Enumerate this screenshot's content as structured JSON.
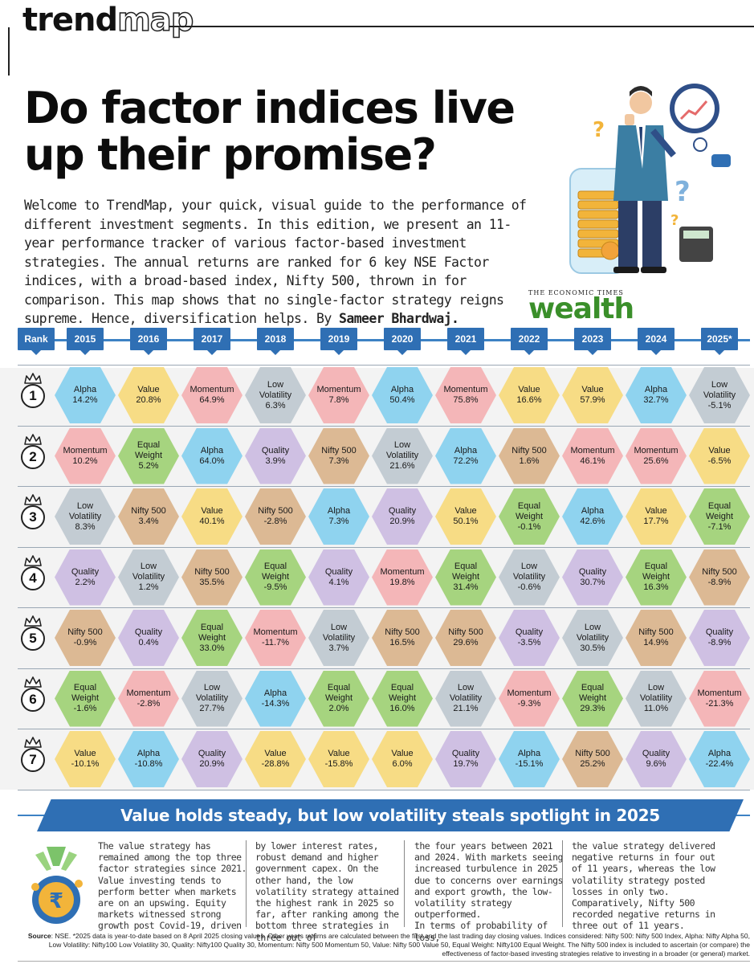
{
  "brand": {
    "part1": "trend",
    "part2": "map"
  },
  "headline": {
    "line1": "Do factor indices live",
    "line2": "up their promise?"
  },
  "intro": {
    "text": "Welcome to TrendMap, your quick, visual guide to the performance of different investment segments. In this edition, we present an 11-year performance tracker of various factor-based investment strategies. The annual returns are ranked for 6 key NSE Factor indices, with a broad-based index, Nifty 500, thrown in for comparison. This map shows that no single-factor strategy reigns supreme. Hence, diversification helps. By ",
    "author": "Sameer Bhardwaj."
  },
  "logo": {
    "small": "THE ECONOMIC TIMES",
    "big": "wealth"
  },
  "colors": {
    "header_blue": "#2f6fb4",
    "Alpha": "#8fd3ef",
    "Value": "#f7dc85",
    "Momentum": "#f4b6b8",
    "Low Volatility": "#c3ccd3",
    "Quality": "#cfc0e3",
    "Nifty 500": "#dcb994",
    "Equal Weight": "#a6d47f"
  },
  "table": {
    "rank_label": "Rank",
    "years": [
      "2015",
      "2016",
      "2017",
      "2018",
      "2019",
      "2020",
      "2021",
      "2022",
      "2023",
      "2024",
      "2025*"
    ],
    "ranks": [
      "1",
      "2",
      "3",
      "4",
      "5",
      "6",
      "7"
    ],
    "rows": [
      [
        [
          "Alpha",
          "14.2%"
        ],
        [
          "Value",
          "20.8%"
        ],
        [
          "Momentum",
          "64.9%"
        ],
        [
          "Low Volatility",
          "6.3%"
        ],
        [
          "Momentum",
          "7.8%"
        ],
        [
          "Alpha",
          "50.4%"
        ],
        [
          "Momentum",
          "75.8%"
        ],
        [
          "Value",
          "16.6%"
        ],
        [
          "Value",
          "57.9%"
        ],
        [
          "Alpha",
          "32.7%"
        ],
        [
          "Low Volatility",
          "-5.1%"
        ]
      ],
      [
        [
          "Momentum",
          "10.2%"
        ],
        [
          "Equal Weight",
          "5.2%"
        ],
        [
          "Alpha",
          "64.0%"
        ],
        [
          "Quality",
          "3.9%"
        ],
        [
          "Nifty 500",
          "7.3%"
        ],
        [
          "Low Volatility",
          "21.6%"
        ],
        [
          "Alpha",
          "72.2%"
        ],
        [
          "Nifty 500",
          "1.6%"
        ],
        [
          "Momentum",
          "46.1%"
        ],
        [
          "Momentum",
          "25.6%"
        ],
        [
          "Value",
          "-6.5%"
        ]
      ],
      [
        [
          "Low Volatility",
          "8.3%"
        ],
        [
          "Nifty 500",
          "3.4%"
        ],
        [
          "Value",
          "40.1%"
        ],
        [
          "Nifty 500",
          "-2.8%"
        ],
        [
          "Alpha",
          "7.3%"
        ],
        [
          "Quality",
          "20.9%"
        ],
        [
          "Value",
          "50.1%"
        ],
        [
          "Equal Weight",
          "-0.1%"
        ],
        [
          "Alpha",
          "42.6%"
        ],
        [
          "Value",
          "17.7%"
        ],
        [
          "Equal Weight",
          "-7.1%"
        ]
      ],
      [
        [
          "Quality",
          "2.2%"
        ],
        [
          "Low Volatility",
          "1.2%"
        ],
        [
          "Nifty 500",
          "35.5%"
        ],
        [
          "Equal Weight",
          "-9.5%"
        ],
        [
          "Quality",
          "4.1%"
        ],
        [
          "Momentum",
          "19.8%"
        ],
        [
          "Equal Weight",
          "31.4%"
        ],
        [
          "Low Volatility",
          "-0.6%"
        ],
        [
          "Quality",
          "30.7%"
        ],
        [
          "Equal Weight",
          "16.3%"
        ],
        [
          "Nifty 500",
          "-8.9%"
        ]
      ],
      [
        [
          "Nifty 500",
          "-0.9%"
        ],
        [
          "Quality",
          "0.4%"
        ],
        [
          "Equal Weight",
          "33.0%"
        ],
        [
          "Momentum",
          "-11.7%"
        ],
        [
          "Low Volatility",
          "3.7%"
        ],
        [
          "Nifty 500",
          "16.5%"
        ],
        [
          "Nifty 500",
          "29.6%"
        ],
        [
          "Quality",
          "-3.5%"
        ],
        [
          "Low Volatility",
          "30.5%"
        ],
        [
          "Nifty 500",
          "14.9%"
        ],
        [
          "Quality",
          "-8.9%"
        ]
      ],
      [
        [
          "Equal Weight",
          "-1.6%"
        ],
        [
          "Momentum",
          "-2.8%"
        ],
        [
          "Low Volatility",
          "27.7%"
        ],
        [
          "Alpha",
          "-14.3%"
        ],
        [
          "Equal Weight",
          "2.0%"
        ],
        [
          "Equal Weight",
          "16.0%"
        ],
        [
          "Low Volatility",
          "21.1%"
        ],
        [
          "Momentum",
          "-9.3%"
        ],
        [
          "Equal Weight",
          "29.3%"
        ],
        [
          "Low Volatility",
          "11.0%"
        ],
        [
          "Momentum",
          "-21.3%"
        ]
      ],
      [
        [
          "Value",
          "-10.1%"
        ],
        [
          "Alpha",
          "-10.8%"
        ],
        [
          "Quality",
          "20.9%"
        ],
        [
          "Value",
          "-28.8%"
        ],
        [
          "Value",
          "-15.8%"
        ],
        [
          "Value",
          "6.0%"
        ],
        [
          "Quality",
          "19.7%"
        ],
        [
          "Alpha",
          "-15.1%"
        ],
        [
          "Nifty 500",
          "25.2%"
        ],
        [
          "Quality",
          "9.6%"
        ],
        [
          "Alpha",
          "-22.4%"
        ]
      ]
    ]
  },
  "banner": "Value holds steady, but low volatility steals spotlight in 2025",
  "columns": [
    "The value strategy has remained among the top three factor strategies since 2021. Value investing tends to perform better when markets are on an upswing. Equity markets witnessed strong growth post Covid-19, driven",
    "by lower interest rates, robust demand and higher government capex. On the other hand, the low volatility strategy attained the highest rank in 2025 so far, after ranking among the bottom three strategies in three out of",
    "the four years between 2021 and 2024. With markets seeing increased turbulence in 2025 due to concerns over earnings and export growth, the low-volatility strategy outperformed.\n    In terms of probability of loss,",
    "the value strategy delivered negative returns in four out of 11 years, whereas the low volatility strategy posted losses in only two. Comparatively, Nifty 500 recorded negative returns in three out of 11 years."
  ],
  "source": {
    "label": "Source",
    "text": ": NSE. *2025 data is year-to-date based on 8 April 2025 closing values. Other years returns are calculated between the first and the last trading day closing values. Indices considered: Nifty 500: Nifty 500 Index,  Alpha: Nifty Alpha 50, Low Volatility: Nifty100 Low Volatility 30, Quality: Nifty100 Quality 30, Momentum: Nifty 500 Momentum 50, Value: Nifty 500 Value 50, Equal Weight: Nifty100 Equal Weight. The Nifty 500 index is included to ascertain (or compare) the effectiveness of factor-based investing strategies relative to investing in a broader (or general) market."
  }
}
